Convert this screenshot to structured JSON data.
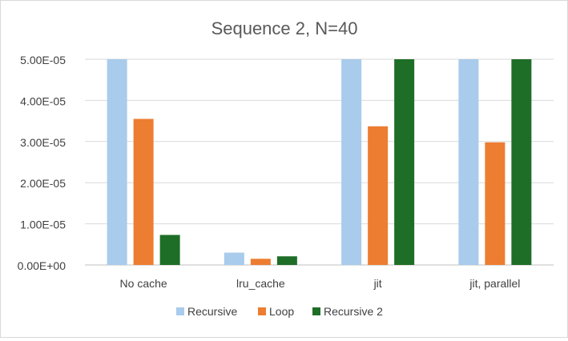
{
  "chart_data": {
    "type": "bar",
    "title": "Sequence 2, N=40",
    "xlabel": "",
    "ylabel": "",
    "ylim": [
      0,
      5e-05
    ],
    "yticks": [
      0,
      1e-05,
      2e-05,
      3e-05,
      4e-05,
      5e-05
    ],
    "ytick_labels": [
      "0.00E+00",
      "1.00E-05",
      "2.00E-05",
      "3.00E-05",
      "4.00E-05",
      "5.00E-05"
    ],
    "grid": true,
    "legend_position": "bottom",
    "categories": [
      "No cache",
      "lru_cache",
      "jit",
      "jit, parallel"
    ],
    "series": [
      {
        "name": "Recursive",
        "color": "#a9cbec",
        "values": [
          5e-05,
          3e-06,
          5e-05,
          5e-05
        ]
      },
      {
        "name": "Loop",
        "color": "#ed7d31",
        "values": [
          3.55e-05,
          1.5e-06,
          3.37e-05,
          2.98e-05
        ]
      },
      {
        "name": "Recursive 2",
        "color": "#1e6e27",
        "values": [
          7.3e-06,
          2.1e-06,
          5e-05,
          5e-05
        ]
      }
    ]
  }
}
